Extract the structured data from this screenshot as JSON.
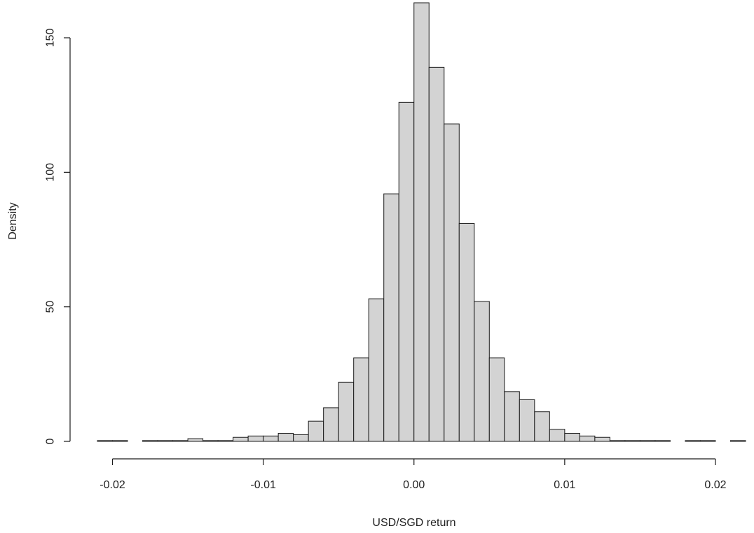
{
  "chart_data": {
    "type": "bar",
    "subtype": "histogram",
    "title": "",
    "xlabel": "USD/SGD return",
    "ylabel": "Density",
    "xlim": [
      -0.021,
      0.022
    ],
    "ylim": [
      0,
      163
    ],
    "xticks": [
      -0.02,
      -0.01,
      0.0,
      0.01,
      0.02
    ],
    "xtick_labels": [
      "-0.02",
      "-0.01",
      "0.00",
      "0.01",
      "0.02"
    ],
    "yticks": [
      0,
      50,
      100,
      150
    ],
    "ytick_labels": [
      "0",
      "50",
      "100",
      "150"
    ],
    "grid": false,
    "bin_width": 0.001,
    "bin_starts": [
      -0.021,
      -0.02,
      -0.019,
      -0.018,
      -0.017,
      -0.016,
      -0.015,
      -0.014,
      -0.013,
      -0.012,
      -0.011,
      -0.01,
      -0.009,
      -0.008,
      -0.007,
      -0.006,
      -0.005,
      -0.004,
      -0.003,
      -0.002,
      -0.001,
      0.0,
      0.001,
      0.002,
      0.003,
      0.004,
      0.005,
      0.006,
      0.007,
      0.008,
      0.009,
      0.01,
      0.011,
      0.012,
      0.013,
      0.014,
      0.015,
      0.016,
      0.017,
      0.018,
      0.019,
      0.02,
      0.021
    ],
    "values": [
      0.3,
      0.3,
      0,
      0.3,
      0.3,
      0.3,
      1.0,
      0.3,
      0.3,
      1.5,
      2.0,
      2.0,
      3.0,
      2.5,
      7.5,
      12.5,
      22,
      31,
      53,
      92,
      126,
      163,
      139,
      118,
      81,
      52,
      31,
      18.5,
      15.5,
      11,
      4.5,
      3.0,
      2.0,
      1.5,
      0.3,
      0.3,
      0.3,
      0.3,
      0,
      0.3,
      0.3,
      0,
      0.3
    ],
    "bar_color": "#d3d3d3",
    "edge_color": "#1a1a1a"
  }
}
